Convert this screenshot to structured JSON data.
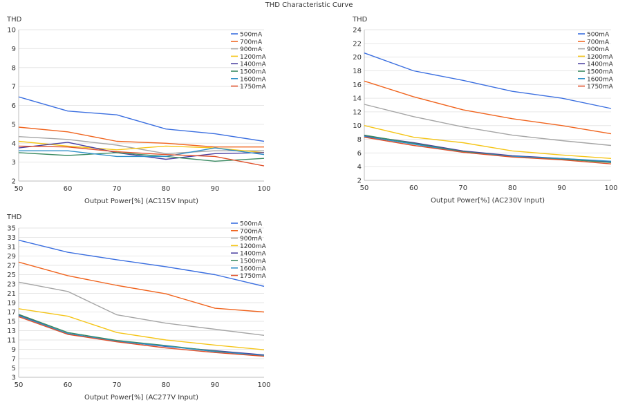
{
  "title": "THD Characteristic Curve",
  "chart_data": [
    {
      "type": "line",
      "ylabel": "THD",
      "xlabel": "Output Power[%] (AC115V Input)",
      "x": [
        50,
        60,
        70,
        80,
        90,
        100
      ],
      "xticks": [
        "50",
        "60",
        "70",
        "80",
        "90",
        "100"
      ],
      "ylim": [
        2,
        10
      ],
      "yticks": [
        "2",
        "3",
        "4",
        "5",
        "6",
        "7",
        "8",
        "9",
        "10"
      ],
      "grid": "horizontal",
      "legend": "top-right",
      "series": [
        {
          "name": "500mA",
          "color": "#3b6fe0",
          "values": [
            6.45,
            5.7,
            5.5,
            4.75,
            4.5,
            4.1
          ]
        },
        {
          "name": "700mA",
          "color": "#f0641e",
          "values": [
            4.85,
            4.6,
            4.1,
            4.0,
            3.8,
            3.8
          ]
        },
        {
          "name": "900mA",
          "color": "#a5a5a5",
          "values": [
            4.35,
            4.2,
            3.9,
            3.45,
            3.6,
            3.6
          ]
        },
        {
          "name": "1200mA",
          "color": "#f5c518",
          "values": [
            4.1,
            3.85,
            3.65,
            3.85,
            3.75,
            3.5
          ]
        },
        {
          "name": "1400mA",
          "color": "#4a3fa0",
          "values": [
            3.75,
            4.05,
            3.5,
            3.15,
            3.45,
            3.5
          ]
        },
        {
          "name": "1500mA",
          "color": "#3a8a62",
          "values": [
            3.5,
            3.35,
            3.5,
            3.3,
            3.05,
            3.2
          ]
        },
        {
          "name": "1600mA",
          "color": "#2e90c8",
          "values": [
            3.6,
            3.6,
            3.3,
            3.3,
            3.75,
            3.4
          ]
        },
        {
          "name": "1750mA",
          "color": "#e0502a",
          "values": [
            3.85,
            3.8,
            3.55,
            3.4,
            3.3,
            2.8
          ]
        }
      ]
    },
    {
      "type": "line",
      "ylabel": "THD",
      "xlabel": "Output Power[%] (AC230V Input)",
      "x": [
        50,
        60,
        70,
        80,
        90,
        100
      ],
      "xticks": [
        "50",
        "60",
        "70",
        "80",
        "90",
        "100"
      ],
      "ylim": [
        2,
        24
      ],
      "yticks": [
        "2",
        "4",
        "6",
        "8",
        "10",
        "12",
        "14",
        "16",
        "18",
        "20",
        "22",
        "24"
      ],
      "grid": "horizontal",
      "legend": "top-right",
      "series": [
        {
          "name": "500mA",
          "color": "#3b6fe0",
          "values": [
            20.6,
            18.0,
            16.6,
            15.0,
            14.0,
            12.5
          ]
        },
        {
          "name": "700mA",
          "color": "#f0641e",
          "values": [
            16.5,
            14.2,
            12.3,
            11.0,
            10.0,
            8.8
          ]
        },
        {
          "name": "900mA",
          "color": "#a5a5a5",
          "values": [
            13.1,
            11.3,
            9.8,
            8.6,
            7.8,
            7.1
          ]
        },
        {
          "name": "1200mA",
          "color": "#f5c518",
          "values": [
            10.0,
            8.3,
            7.5,
            6.3,
            5.7,
            5.2
          ]
        },
        {
          "name": "1400mA",
          "color": "#4a3fa0",
          "values": [
            8.5,
            7.5,
            6.3,
            5.6,
            5.2,
            4.7
          ]
        },
        {
          "name": "1500mA",
          "color": "#3a8a62",
          "values": [
            8.6,
            7.4,
            6.2,
            5.5,
            5.1,
            4.6
          ]
        },
        {
          "name": "1600mA",
          "color": "#2e90c8",
          "values": [
            8.4,
            7.3,
            6.1,
            5.5,
            5.2,
            4.8
          ]
        },
        {
          "name": "1750mA",
          "color": "#e0502a",
          "values": [
            8.3,
            7.1,
            6.1,
            5.4,
            5.0,
            4.4
          ]
        }
      ]
    },
    {
      "type": "line",
      "ylabel": "THD",
      "xlabel": "Output Power[%] (AC277V Input)",
      "x": [
        50,
        60,
        70,
        80,
        90,
        100
      ],
      "xticks": [
        "50",
        "60",
        "70",
        "80",
        "90",
        "100"
      ],
      "ylim": [
        3,
        35
      ],
      "yticks": [
        "3",
        "5",
        "7",
        "9",
        "11",
        "13",
        "15",
        "17",
        "19",
        "21",
        "23",
        "25",
        "27",
        "29",
        "31",
        "33",
        "35"
      ],
      "grid": "horizontal",
      "legend": "top-right",
      "series": [
        {
          "name": "500mA",
          "color": "#3b6fe0",
          "values": [
            32.4,
            29.8,
            28.2,
            26.7,
            25.0,
            22.5
          ]
        },
        {
          "name": "700mA",
          "color": "#f0641e",
          "values": [
            27.7,
            24.8,
            22.7,
            20.9,
            17.8,
            17.0
          ]
        },
        {
          "name": "900mA",
          "color": "#a5a5a5",
          "values": [
            23.4,
            21.4,
            16.4,
            14.6,
            13.3,
            12.0
          ]
        },
        {
          "name": "1200mA",
          "color": "#f5c518",
          "values": [
            17.7,
            16.1,
            12.6,
            11.0,
            9.9,
            8.9
          ]
        },
        {
          "name": "1400mA",
          "color": "#4a3fa0",
          "values": [
            16.4,
            12.3,
            10.8,
            9.6,
            8.7,
            7.8
          ]
        },
        {
          "name": "1500mA",
          "color": "#3a8a62",
          "values": [
            16.5,
            12.6,
            10.9,
            9.8,
            8.6,
            7.6
          ]
        },
        {
          "name": "1600mA",
          "color": "#2e90c8",
          "values": [
            16.2,
            12.4,
            10.7,
            9.7,
            8.5,
            7.7
          ]
        },
        {
          "name": "1750mA",
          "color": "#e0502a",
          "values": [
            16.0,
            12.2,
            10.6,
            9.3,
            8.3,
            7.5
          ]
        }
      ]
    }
  ]
}
